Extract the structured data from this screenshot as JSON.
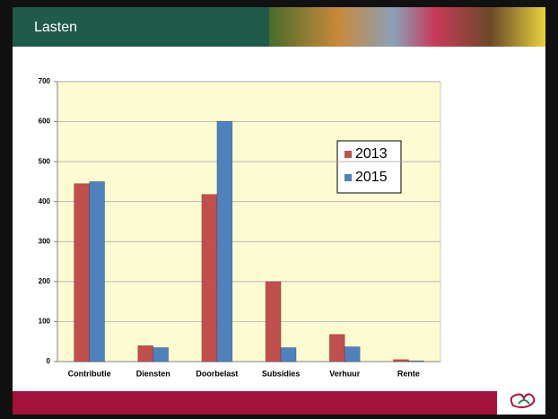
{
  "slide_title": "Lasten",
  "chart_data": {
    "type": "bar",
    "categories": [
      "Contributie",
      "Diensten",
      "Doorbelast",
      "Subsidies",
      "Verhuur",
      "Rente"
    ],
    "series": [
      {
        "name": "2013",
        "color": "#c0504d",
        "values": [
          445,
          40,
          418,
          200,
          68,
          5
        ]
      },
      {
        "name": "2015",
        "color": "#4f81bd",
        "values": [
          450,
          35,
          601,
          35,
          37,
          2
        ]
      }
    ],
    "ylim": [
      0,
      700
    ],
    "yticks": [
      0,
      100,
      200,
      300,
      400,
      500,
      600,
      700
    ],
    "grid": true,
    "legend": "right"
  }
}
